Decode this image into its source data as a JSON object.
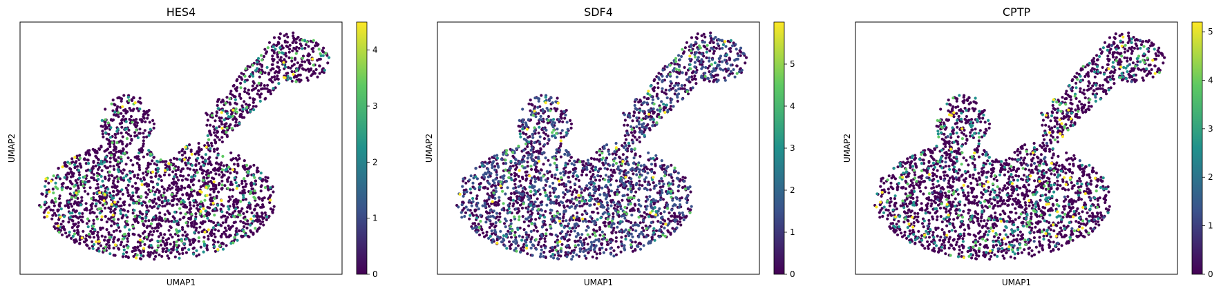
{
  "figure": {
    "panels": [
      {
        "title": "HES4",
        "xlabel": "UMAP1",
        "ylabel": "UMAP2"
      },
      {
        "title": "SDF4",
        "xlabel": "UMAP1",
        "ylabel": "UMAP2"
      },
      {
        "title": "CPTP",
        "xlabel": "UMAP1",
        "ylabel": "UMAP2"
      }
    ]
  },
  "colormap": [
    "#440154",
    "#3b528b",
    "#21918c",
    "#5ec962",
    "#fde725"
  ],
  "chart_data": [
    {
      "type": "scatter",
      "title": "HES4",
      "xlabel": "UMAP1",
      "ylabel": "UMAP2",
      "colorbar": {
        "min": 0,
        "max": 4.5,
        "ticks": [
          0,
          1,
          2,
          3,
          4
        ]
      },
      "x_ticks_shown": false,
      "y_ticks_shown": false,
      "grid": false,
      "point_count_approx": 2600,
      "expression_profile": "mostly 0, sparse cells at 2-4.5"
    },
    {
      "type": "scatter",
      "title": "SDF4",
      "xlabel": "UMAP1",
      "ylabel": "UMAP2",
      "colorbar": {
        "min": 0,
        "max": 6,
        "ticks": [
          0,
          1,
          2,
          3,
          4,
          5
        ]
      },
      "x_ticks_shown": false,
      "y_ticks_shown": false,
      "grid": false,
      "point_count_approx": 2600,
      "expression_profile": "mostly 0-2, few cells up to 5"
    },
    {
      "type": "scatter",
      "title": "CPTP",
      "xlabel": "UMAP1",
      "ylabel": "UMAP2",
      "colorbar": {
        "min": 0,
        "max": 5.2,
        "ticks": [
          0,
          1,
          2,
          3,
          4,
          5
        ]
      },
      "x_ticks_shown": false,
      "y_ticks_shown": false,
      "grid": false,
      "point_count_approx": 2600,
      "expression_profile": "mostly 0, sparse cells at 2-5"
    }
  ]
}
